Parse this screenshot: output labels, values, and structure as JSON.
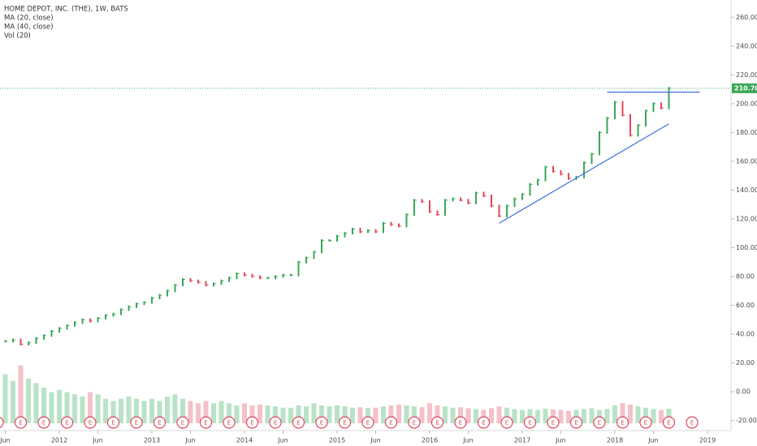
{
  "chart_data": {
    "type": "ohlc-line",
    "title": "HOME DEPOT, INC. (THE), 1W, BATS",
    "indicators": [
      "MA (20, close)",
      "MA (40, close)",
      "Vol (20)"
    ],
    "x": [
      "2011-06",
      "2011-07",
      "2011-08",
      "2011-09",
      "2011-10",
      "2011-11",
      "2011-12",
      "2012-01",
      "2012-02",
      "2012-03",
      "2012-04",
      "2012-05",
      "2012-06",
      "2012-07",
      "2012-08",
      "2012-09",
      "2012-10",
      "2012-11",
      "2012-12",
      "2013-01",
      "2013-02",
      "2013-03",
      "2013-04",
      "2013-05",
      "2013-06",
      "2013-07",
      "2013-08",
      "2013-09",
      "2013-10",
      "2013-11",
      "2013-12",
      "2014-01",
      "2014-02",
      "2014-03",
      "2014-04",
      "2014-05",
      "2014-06",
      "2014-07",
      "2014-08",
      "2014-09",
      "2014-10",
      "2014-11",
      "2014-12",
      "2015-01",
      "2015-02",
      "2015-03",
      "2015-04",
      "2015-05",
      "2015-06",
      "2015-07",
      "2015-08",
      "2015-09",
      "2015-10",
      "2015-11",
      "2015-12",
      "2016-01",
      "2016-02",
      "2016-03",
      "2016-04",
      "2016-05",
      "2016-06",
      "2016-07",
      "2016-08",
      "2016-09",
      "2016-10",
      "2016-11",
      "2016-12",
      "2017-01",
      "2017-02",
      "2017-03",
      "2017-04",
      "2017-05",
      "2017-06",
      "2017-07",
      "2017-08",
      "2017-09",
      "2017-10",
      "2017-11",
      "2017-12",
      "2018-01",
      "2018-02",
      "2018-03",
      "2018-04",
      "2018-05",
      "2018-06",
      "2018-07",
      "2018-08"
    ],
    "series": [
      {
        "name": "Close",
        "up_color": "#3aa757",
        "down_color": "#e0475b",
        "values": [
          35,
          36,
          33,
          34,
          37,
          39,
          42,
          44,
          46,
          48,
          50,
          49,
          51,
          53,
          54,
          57,
          59,
          61,
          62,
          65,
          67,
          70,
          74,
          78,
          77,
          76,
          74,
          75,
          77,
          79,
          82,
          81,
          80,
          79,
          79,
          80,
          81,
          81,
          90,
          93,
          97,
          105,
          105,
          108,
          110,
          113,
          111,
          112,
          111,
          117,
          116,
          115,
          123,
          133,
          132,
          125,
          123,
          133,
          134,
          133,
          131,
          138,
          136,
          129,
          122,
          129,
          134,
          137,
          144,
          147,
          156,
          153,
          151,
          148,
          149,
          159,
          165,
          180,
          190,
          201,
          192,
          178,
          185,
          195,
          200,
          197,
          210.7
        ]
      },
      {
        "name": "Volume",
        "up_color": "#b9e3c6",
        "down_color": "#f5c1c8",
        "values": [
          110,
          95,
          130,
          100,
          90,
          80,
          70,
          75,
          70,
          65,
          60,
          70,
          65,
          55,
          50,
          55,
          60,
          55,
          50,
          55,
          50,
          60,
          65,
          55,
          50,
          45,
          50,
          45,
          50,
          45,
          40,
          45,
          40,
          42,
          40,
          38,
          35,
          35,
          40,
          38,
          45,
          40,
          38,
          40,
          38,
          35,
          36,
          34,
          35,
          38,
          40,
          42,
          40,
          38,
          36,
          45,
          40,
          38,
          35,
          36,
          34,
          32,
          30,
          34,
          38,
          35,
          32,
          30,
          32,
          30,
          33,
          31,
          30,
          28,
          30,
          32,
          34,
          30,
          32,
          40,
          45,
          42,
          38,
          35,
          32,
          30,
          33
        ]
      }
    ],
    "last_price": {
      "value": 210.7,
      "label": "210.70"
    },
    "ylim": [
      -27,
      272
    ],
    "yticks": [
      {
        "value": -20,
        "label": "-20.00"
      },
      {
        "value": 0,
        "label": "0.00"
      },
      {
        "value": 20,
        "label": "20.00"
      },
      {
        "value": 40,
        "label": "40.00"
      },
      {
        "value": 60,
        "label": "60.00"
      },
      {
        "value": 80,
        "label": "80.00"
      },
      {
        "value": 100,
        "label": "100.00"
      },
      {
        "value": 120,
        "label": "120.00"
      },
      {
        "value": 140,
        "label": "140.00"
      },
      {
        "value": 160,
        "label": "160.00"
      },
      {
        "value": 180,
        "label": "180.00"
      },
      {
        "value": 200,
        "label": "200.00"
      },
      {
        "value": 220,
        "label": "220.00"
      },
      {
        "value": 240,
        "label": "240.00"
      },
      {
        "value": 260,
        "label": "260.00"
      }
    ],
    "xticks": [
      {
        "value": "2011-06",
        "label": "Jun"
      },
      {
        "value": "2012-01",
        "label": "2012"
      },
      {
        "value": "2012-06",
        "label": "Jun"
      },
      {
        "value": "2013-01",
        "label": "2013"
      },
      {
        "value": "2013-06",
        "label": "Jun"
      },
      {
        "value": "2014-01",
        "label": "2014"
      },
      {
        "value": "2014-06",
        "label": "Jun"
      },
      {
        "value": "2015-01",
        "label": "2015"
      },
      {
        "value": "2015-06",
        "label": "Jun"
      },
      {
        "value": "2016-01",
        "label": "2016"
      },
      {
        "value": "2016-06",
        "label": "Jun"
      },
      {
        "value": "2017-01",
        "label": "2017"
      },
      {
        "value": "2017-06",
        "label": "Jun"
      },
      {
        "value": "2018-01",
        "label": "2018"
      },
      {
        "value": "2018-06",
        "label": "Jun"
      },
      {
        "value": "2019-01",
        "label": "2019"
      }
    ],
    "events": {
      "label": "E",
      "color": "#e0475b",
      "x": [
        "2011-05",
        "2011-08",
        "2011-11",
        "2012-02",
        "2012-05",
        "2012-08",
        "2012-11",
        "2013-02",
        "2013-05",
        "2013-08",
        "2013-11",
        "2014-02",
        "2014-05",
        "2014-08",
        "2014-11",
        "2015-02",
        "2015-05",
        "2015-08",
        "2015-11",
        "2016-02",
        "2016-05",
        "2016-08",
        "2016-11",
        "2017-02",
        "2017-05",
        "2017-08",
        "2017-11",
        "2018-02",
        "2018-05",
        "2018-08",
        "2018-11"
      ]
    },
    "drawings": [
      {
        "color": "#3a6fd8",
        "x": [
          "2017-12",
          "2018-12"
        ],
        "y": [
          208,
          208
        ]
      },
      {
        "color": "#3a6fd8",
        "x": [
          "2016-10",
          "2018-08"
        ],
        "y": [
          117,
          186
        ]
      }
    ]
  }
}
